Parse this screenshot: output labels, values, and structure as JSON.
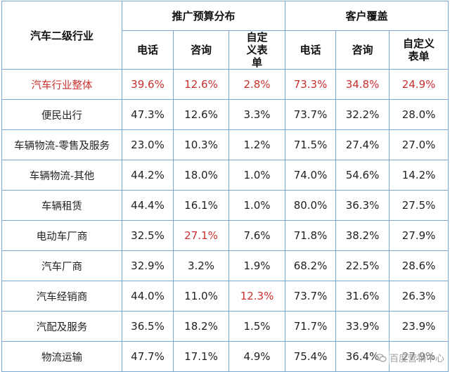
{
  "header": {
    "row_label": "汽车二级行业",
    "group1": "推广预算分布",
    "group2": "客户覆盖",
    "sub1": "电话",
    "sub2": "咨询",
    "sub3": "自定义表单",
    "sub4": "电话",
    "sub5": "咨询",
    "sub6": "自定义表单"
  },
  "rows": [
    {
      "name": "汽车行业整体",
      "v": [
        "39.6%",
        "12.6%",
        "2.8%",
        "73.3%",
        "34.8%",
        "24.9%"
      ]
    },
    {
      "name": "便民出行",
      "v": [
        "47.3%",
        "12.6%",
        "3.3%",
        "73.7%",
        "32.2%",
        "28.0%"
      ]
    },
    {
      "name": "车辆物流-零售及服务",
      "v": [
        "23.0%",
        "10.3%",
        "1.2%",
        "71.5%",
        "27.4%",
        "27.0%"
      ]
    },
    {
      "name": "车辆物流-其他",
      "v": [
        "44.2%",
        "18.0%",
        "1.0%",
        "74.0%",
        "54.6%",
        "14.2%"
      ]
    },
    {
      "name": "车辆租赁",
      "v": [
        "44.4%",
        "16.1%",
        "1.0%",
        "80.0%",
        "36.3%",
        "27.5%"
      ]
    },
    {
      "name": "电动车厂商",
      "v": [
        "32.5%",
        "27.1%",
        "7.6%",
        "71.8%",
        "38.2%",
        "27.9%"
      ]
    },
    {
      "name": "汽车厂商",
      "v": [
        "32.9%",
        "3.2%",
        "1.9%",
        "68.2%",
        "22.5%",
        "28.6%"
      ]
    },
    {
      "name": "汽车经销商",
      "v": [
        "44.0%",
        "11.0%",
        "12.3%",
        "73.7%",
        "31.6%",
        "26.3%"
      ]
    },
    {
      "name": "汽配及服务",
      "v": [
        "36.5%",
        "18.2%",
        "1.5%",
        "71.7%",
        "33.9%",
        "23.9%"
      ]
    },
    {
      "name": "物流运输",
      "v": [
        "47.7%",
        "17.1%",
        "4.9%",
        "75.4%",
        "36.4%",
        "27.9%"
      ]
    }
  ],
  "highlight_color": "#c8302d",
  "watermark": {
    "text": "百度营销中心",
    "icon": "wechat-icon"
  }
}
